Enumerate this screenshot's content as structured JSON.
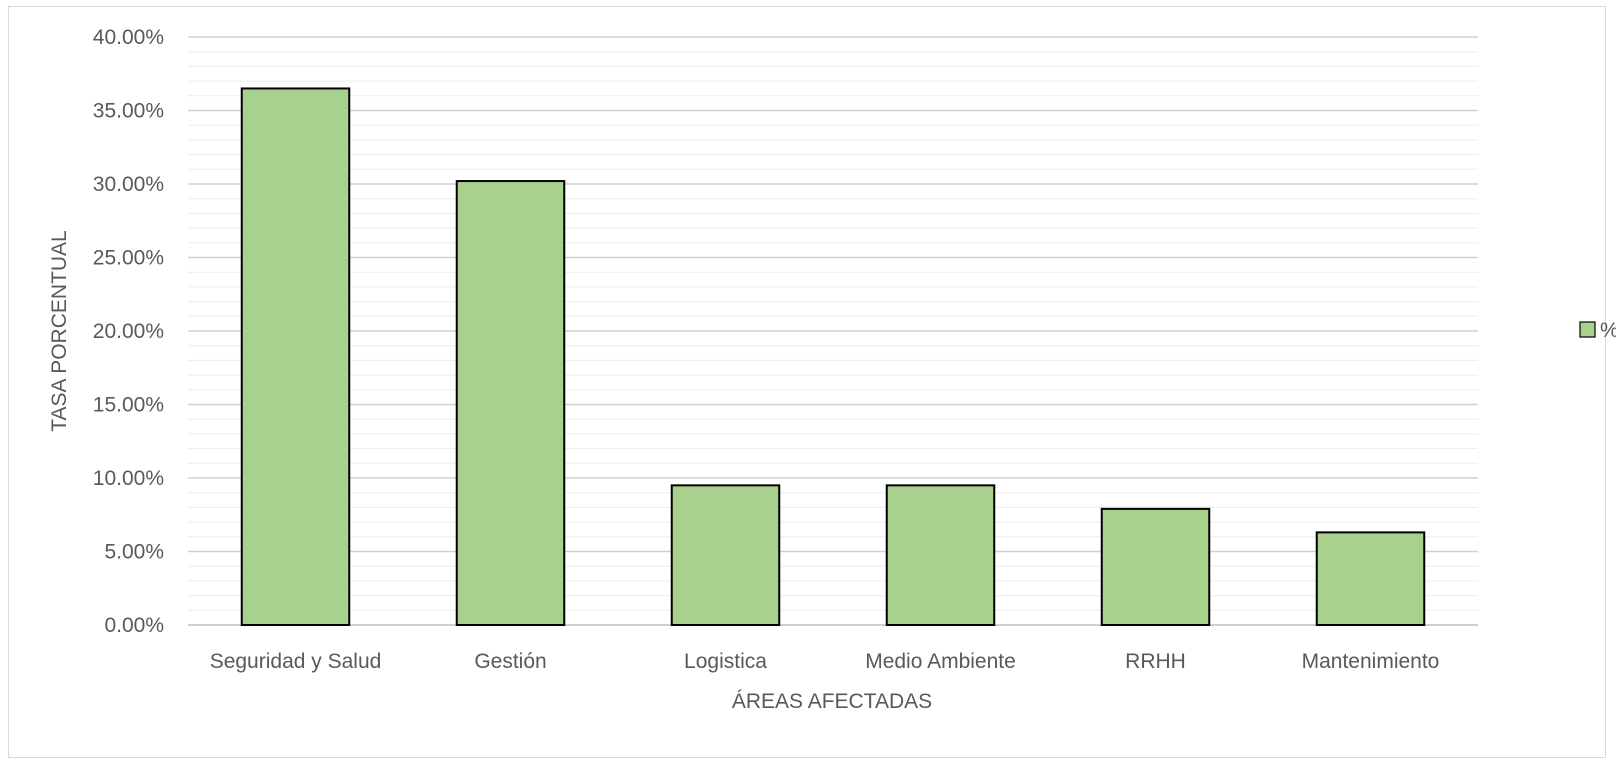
{
  "chart_data": {
    "type": "bar",
    "title": "",
    "xlabel": "ÁREAS AFECTADAS",
    "ylabel": "TASA PORCENTUAL",
    "categories": [
      "Seguridad y Salud",
      "Gestión",
      "Logistica",
      "Medio Ambiente",
      "RRHH",
      "Mantenimiento"
    ],
    "series": [
      {
        "name": "%",
        "values": [
          36.5,
          30.2,
          9.5,
          9.5,
          7.9,
          6.3
        ],
        "color": "#a9d18e"
      }
    ],
    "ylim": [
      0,
      40
    ],
    "yticks": [
      "0.00%",
      "5.00%",
      "10.00%",
      "15.00%",
      "20.00%",
      "25.00%",
      "30.00%",
      "35.00%",
      "40.00%"
    ],
    "grid": {
      "major": true,
      "minor": true
    },
    "legend_position": "right",
    "bar_outline_color": "#000000",
    "gridline_color": "#d9d9d9"
  }
}
